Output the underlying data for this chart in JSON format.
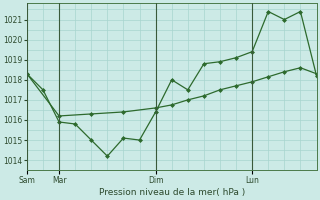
{
  "bg_color": "#cceae6",
  "grid_color": "#a8d5cf",
  "line_color": "#2d6a2d",
  "marker_color": "#2d6a2d",
  "title": "Pression niveau de la mer( hPa )",
  "ylim": [
    1013.5,
    1021.8
  ],
  "yticks": [
    1014,
    1015,
    1016,
    1017,
    1018,
    1019,
    1020,
    1021
  ],
  "day_positions": [
    0,
    12,
    48,
    84
  ],
  "day_labels": [
    "Sam",
    "Mar",
    "Dim",
    "Lun"
  ],
  "xlim": [
    0,
    108
  ],
  "series1_x": [
    0,
    6,
    12,
    18,
    24,
    30,
    36,
    42,
    48,
    54,
    60,
    66,
    72,
    78,
    84,
    90,
    96,
    102,
    108
  ],
  "series1_y": [
    1018.3,
    1017.5,
    1015.9,
    1015.8,
    1015.0,
    1014.2,
    1015.1,
    1015.0,
    1016.4,
    1018.0,
    1017.5,
    1018.8,
    1018.9,
    1019.1,
    1019.4,
    1021.4,
    1021.0,
    1021.4,
    1018.2
  ],
  "series2_x": [
    0,
    12,
    24,
    36,
    48,
    54,
    60,
    66,
    72,
    78,
    84,
    90,
    96,
    102,
    108
  ],
  "series2_y": [
    1018.3,
    1016.2,
    1016.3,
    1016.4,
    1016.6,
    1016.75,
    1017.0,
    1017.2,
    1017.5,
    1017.7,
    1017.9,
    1018.15,
    1018.4,
    1018.6,
    1018.3
  ],
  "series3_x": [
    0,
    12,
    24
  ],
  "series3_y": [
    1018.3,
    1016.55,
    1016.2
  ],
  "vlines_x": [
    0,
    12,
    48,
    84
  ],
  "figsize": [
    3.2,
    2.0
  ],
  "dpi": 100
}
